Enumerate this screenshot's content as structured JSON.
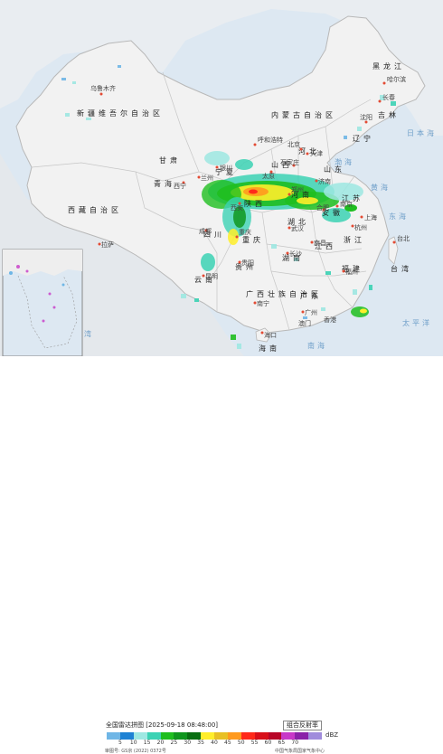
{
  "legend": {
    "title": "全国雷达拼图 [2025-09-18 08:48:00]",
    "product": "组合反射率",
    "unit": "dBZ",
    "ticks": [
      "5",
      "10",
      "15",
      "20",
      "25",
      "30",
      "35",
      "40",
      "45",
      "50",
      "55",
      "60",
      "65",
      "70"
    ],
    "colors": [
      "#6fb6e6",
      "#1e82d4",
      "#9ee8e2",
      "#3cd2b4",
      "#1fbe1f",
      "#10961e",
      "#0a6e12",
      "#ffee2a",
      "#e8c024",
      "#ff9a1e",
      "#ff2a1a",
      "#d8101a",
      "#b80628",
      "#c838c8",
      "#8a22a8",
      "#a08cdc"
    ],
    "approval": "审图号: GS京 (2022) 0372号",
    "producer": "中国气象局国家气象中心"
  },
  "regions": {
    "xinjiang": "新疆维吾尔自治区",
    "xizang": "西藏自治区",
    "qinghai": "青海",
    "gansu": "甘肃",
    "neimenggu": "内蒙古自治区",
    "heilongjiang": "黑龙江",
    "jilin": "吉林",
    "liaoning": "辽宁",
    "hebei": "河北",
    "shanxi": "山西",
    "shaanxi": "陕西",
    "henan": "河南",
    "shandong": "山东",
    "hubei": "湖北",
    "hunan": "湖南",
    "sichuan": "四川",
    "chongqing": "重庆",
    "guizhou": "贵州",
    "yunnan": "云南",
    "guangxi": "广西壮族自治区",
    "guangdong": "广东",
    "fujian": "福建",
    "jiangxi": "江西",
    "zhejiang": "浙江",
    "anhui": "安徽",
    "jiangsu": "江苏",
    "taiwan": "台湾",
    "ningxia": "宁夏",
    "hainan": "海南"
  },
  "cities": {
    "urumqi": "乌鲁木齐",
    "lhasa": "拉萨",
    "xining": "西宁",
    "lanzhou": "兰州",
    "yinchuan": "银川",
    "hohhot": "呼和浩特",
    "harbin": "哈尔滨",
    "changchun": "长春",
    "shenyang": "沈阳",
    "beijing": "北京",
    "tianjin": "天津",
    "shijiazhuang": "石家庄",
    "taiyuan": "太原",
    "jinan": "济南",
    "zhengzhou": "郑州",
    "xian": "西安",
    "chengdu": "成都",
    "chongqing_city": "重庆",
    "wuhan": "武汉",
    "hefei": "合肥",
    "nanjing": "南京",
    "shanghai": "上海",
    "hangzhou": "杭州",
    "nanchang": "南昌",
    "changsha": "长沙",
    "guiyang": "贵阳",
    "kunming": "昆明",
    "nanning": "南宁",
    "guangzhou": "广州",
    "fuzhou": "福州",
    "taibei": "台北",
    "haikou": "海口",
    "hongkong": "香港",
    "macau": "澳门"
  },
  "seas": {
    "bohai": "渤海",
    "yellow": "黄海",
    "east": "东海",
    "south": "南海",
    "pacific": "太平洋",
    "japan_sea": "日本海",
    "bengal": "孟加拉湾"
  }
}
